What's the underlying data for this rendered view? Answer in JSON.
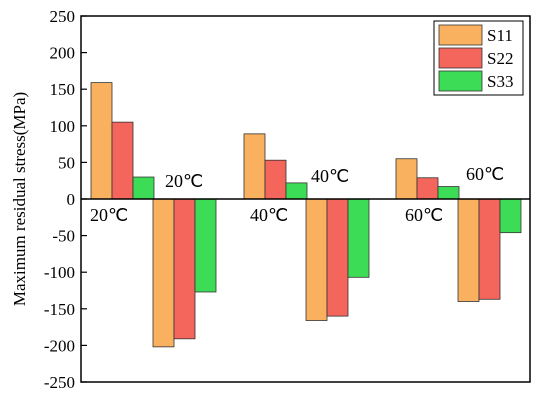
{
  "chart_data": {
    "type": "bar",
    "ylabel": "Maximum residual stress(MPa)",
    "xlabel": "",
    "ylim": [
      -250,
      250
    ],
    "yticks": [
      -250,
      -200,
      -150,
      -100,
      -50,
      0,
      50,
      100,
      150,
      200,
      250
    ],
    "grid": false,
    "legend_position": "top-right",
    "groups": [
      {
        "label": "20℃",
        "state": "positive"
      },
      {
        "label": "20℃",
        "state": "negative"
      },
      {
        "label": "40℃",
        "state": "positive"
      },
      {
        "label": "40℃",
        "state": "negative"
      },
      {
        "label": "60℃",
        "state": "positive"
      },
      {
        "label": "60℃",
        "state": "negative"
      }
    ],
    "series": [
      {
        "name": "S11",
        "color": "#f9b05f",
        "values": [
          159,
          -202,
          89,
          -166,
          55,
          -140
        ]
      },
      {
        "name": "S22",
        "color": "#f4655c",
        "values": [
          105,
          -191,
          53,
          -160,
          29,
          -137
        ]
      },
      {
        "name": "S33",
        "color": "#3ddc56",
        "values": [
          30,
          -127,
          22,
          -107,
          17,
          -46
        ]
      }
    ]
  }
}
